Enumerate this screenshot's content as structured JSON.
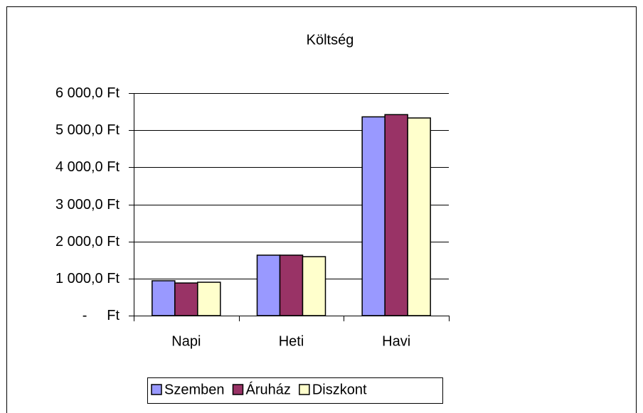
{
  "chart_data": {
    "type": "bar",
    "title": "Költség",
    "categories": [
      "Napi",
      "Heti",
      "Havi"
    ],
    "series": [
      {
        "name": "Szemben",
        "color": "#9999ff",
        "values": [
          940,
          1630,
          5360
        ]
      },
      {
        "name": "Áruház",
        "color": "#993366",
        "values": [
          880,
          1630,
          5420
        ]
      },
      {
        "name": "Diszkont",
        "color": "#ffffcc",
        "values": [
          900,
          1590,
          5330
        ]
      }
    ],
    "ylim": [
      0,
      6000
    ],
    "yticks": [
      {
        "value": 0,
        "label": "-     Ft"
      },
      {
        "value": 1000,
        "label": "1 000,0 Ft"
      },
      {
        "value": 2000,
        "label": "2 000,0 Ft"
      },
      {
        "value": 3000,
        "label": "3 000,0 Ft"
      },
      {
        "value": 4000,
        "label": "4 000,0 Ft"
      },
      {
        "value": 5000,
        "label": "5 000,0 Ft"
      },
      {
        "value": 6000,
        "label": "6 000,0 Ft"
      }
    ],
    "grid": true,
    "legend": "bottom"
  }
}
